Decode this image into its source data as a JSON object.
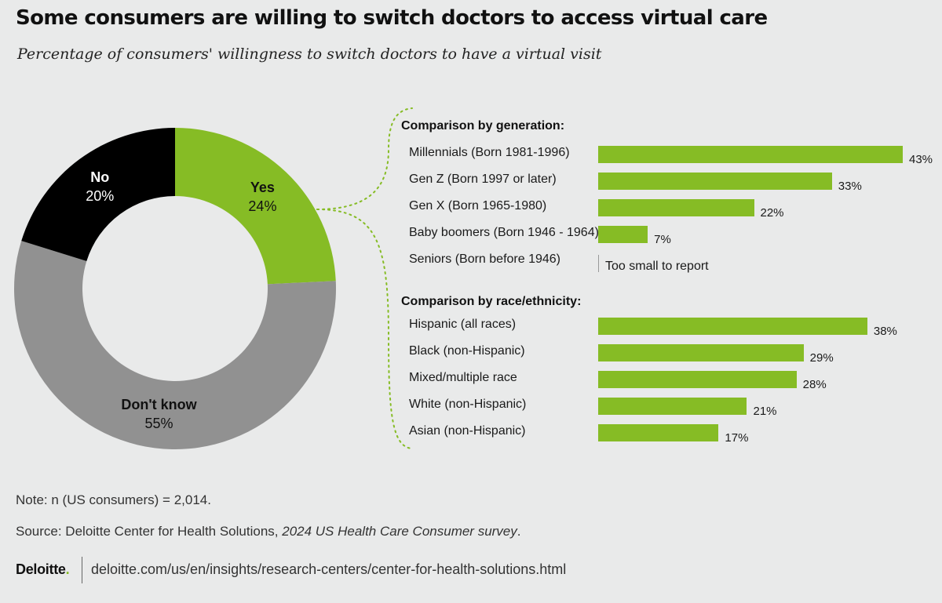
{
  "title": "Some consumers are willing to switch doctors to access virtual care",
  "subtitle": "Percentage of consumers' willingness to switch doctors to have a virtual visit",
  "chart_data": [
    {
      "type": "pie",
      "slices": [
        {
          "name": "Yes",
          "value": 24,
          "label": "24%",
          "color": "#86bc25"
        },
        {
          "name": "Don't know",
          "value": 55,
          "label": "55%",
          "color": "#919191"
        },
        {
          "name": "No",
          "value": 20,
          "label": "20%",
          "color": "#000000"
        }
      ]
    },
    {
      "type": "bar",
      "orientation": "horizontal",
      "title": "Comparison by generation:",
      "categories": [
        "Millennials  (Born 1981-1996)",
        "Gen Z  (Born 1997 or later)",
        "Gen X (Born 1965-1980)",
        "Baby boomers (Born 1946 - 1964)",
        "Seniors (Born before 1946)"
      ],
      "values": [
        43,
        33,
        22,
        7,
        null
      ],
      "value_labels": [
        "43%",
        "33%",
        "22%",
        "7%",
        "Too small to report"
      ],
      "color": "#86bc25",
      "xlim": [
        0,
        43
      ]
    },
    {
      "type": "bar",
      "orientation": "horizontal",
      "title": "Comparison by race/ethnicity:",
      "categories": [
        "Hispanic (all races)",
        "Black (non-Hispanic)",
        "Mixed/multiple race",
        "White (non-Hispanic)",
        "Asian (non-Hispanic)"
      ],
      "values": [
        38,
        29,
        28,
        21,
        17
      ],
      "value_labels": [
        "38%",
        "29%",
        "28%",
        "21%",
        "17%"
      ],
      "color": "#86bc25",
      "xlim": [
        0,
        43
      ]
    }
  ],
  "note": "Note: n (US consumers) = 2,014.",
  "source": {
    "prefix": "Source: Deloitte Center for Health Solutions, ",
    "italic": "2024 US Health Care Consumer survey",
    "suffix": "."
  },
  "footer": {
    "logo_text": "Deloitte",
    "logo_dot": ".",
    "url": "deloitte.com/us/en/insights/research-centers/center-for-health-solutions.html"
  }
}
